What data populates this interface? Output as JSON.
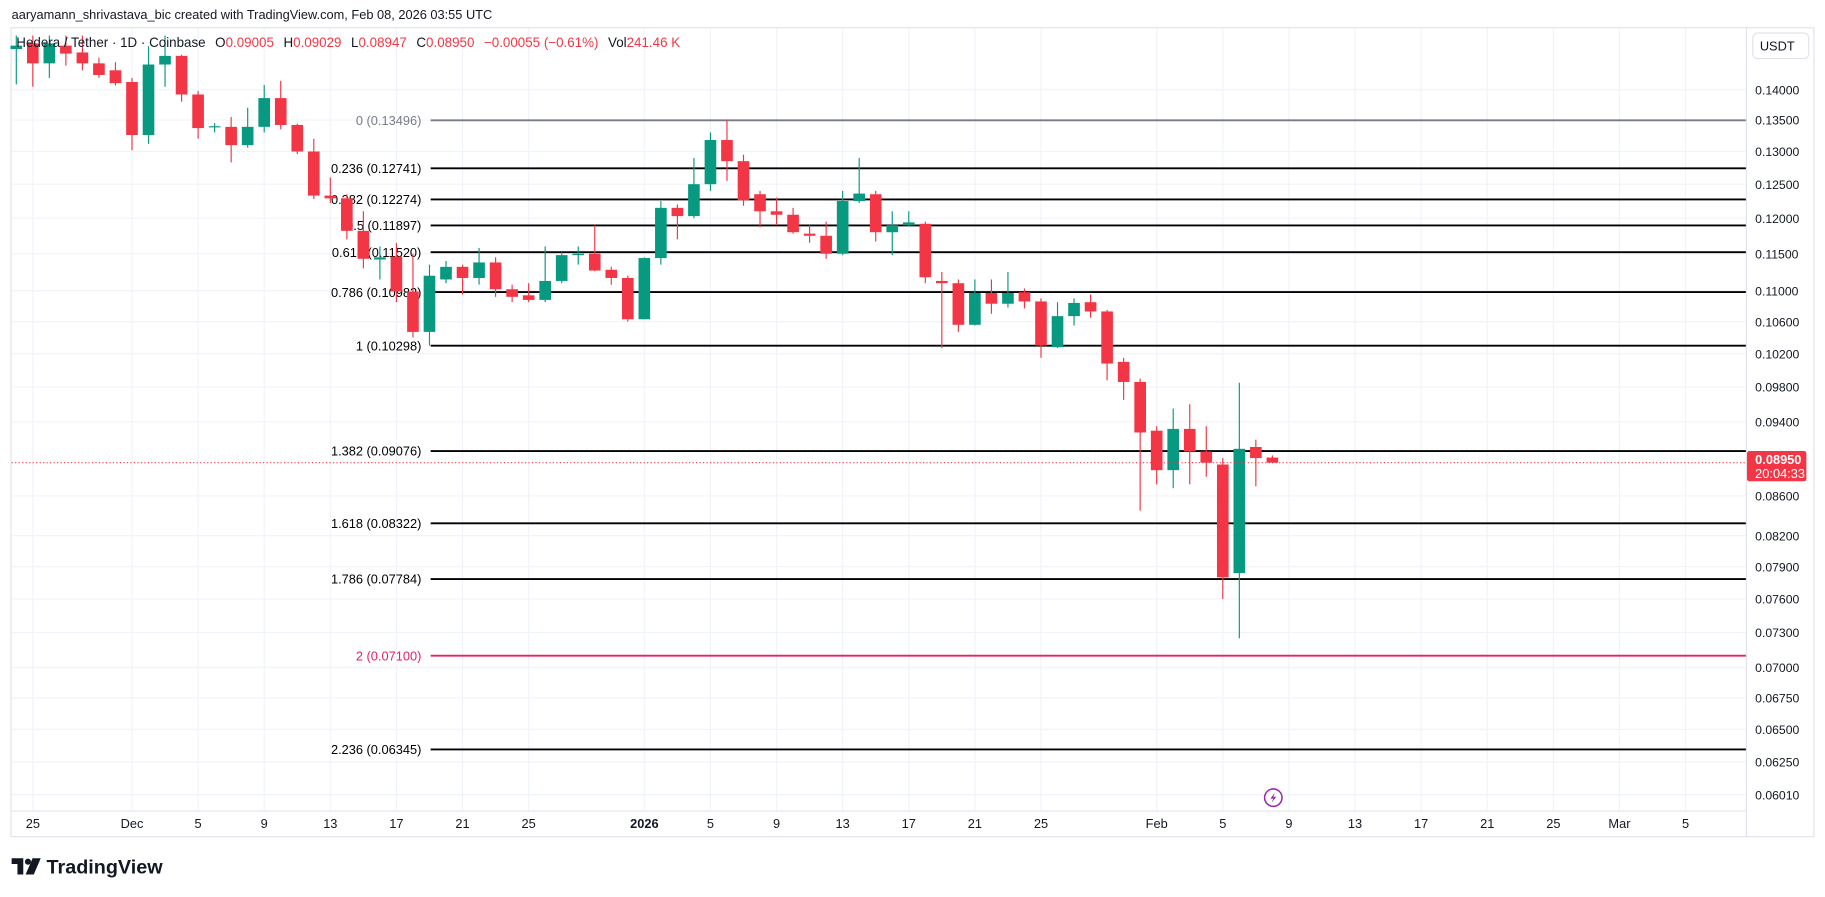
{
  "header": {
    "attribution": "aaryamann_shrivastava_bic created with TradingView.com, Feb 08, 2026 03:55 UTC"
  },
  "legend": {
    "symbol": "Hedera / Tether · 1D · Coinbase",
    "o_label": "O",
    "o": "0.09005",
    "h_label": "H",
    "h": "0.09029",
    "l_label": "L",
    "l": "0.08947",
    "c_label": "C",
    "c": "0.08950",
    "change": "−0.00055 (−0.61%)",
    "vol_label": "Vol",
    "vol": "241.46 K"
  },
  "currency_button": "USDT",
  "last_price": {
    "value": "0.08950",
    "countdown": "20:04:33"
  },
  "watermark": "TradingView",
  "colors": {
    "up": "#089981",
    "down": "#f23645",
    "fib": "#000000",
    "fib_zero": "#787b86",
    "fib_two": "#e91e63",
    "grid": "#f0f3fa"
  },
  "icons": {
    "logo": "tradingview-logo-icon",
    "event": "lightning-bolt-icon"
  },
  "chart_data": {
    "type": "candlestick",
    "scale": "log",
    "ylim": [
      0.059,
      0.15
    ],
    "grid": true,
    "y_ticks": [
      "0.14000",
      "0.13500",
      "0.13000",
      "0.12500",
      "0.12000",
      "0.11500",
      "0.11000",
      "0.10600",
      "0.10200",
      "0.09800",
      "0.09400",
      "0.08600",
      "0.08200",
      "0.07900",
      "0.07600",
      "0.07300",
      "0.07000",
      "0.06750",
      "0.06500",
      "0.06250",
      "0.06010"
    ],
    "x_ticks": [
      {
        "label": "25",
        "date": "2025-11-25"
      },
      {
        "label": "Dec",
        "date": "2025-12-01"
      },
      {
        "label": "5",
        "date": "2025-12-05"
      },
      {
        "label": "9",
        "date": "2025-12-09"
      },
      {
        "label": "13",
        "date": "2025-12-13"
      },
      {
        "label": "17",
        "date": "2025-12-17"
      },
      {
        "label": "21",
        "date": "2025-12-21"
      },
      {
        "label": "25",
        "date": "2025-12-25"
      },
      {
        "label": "2026",
        "date": "2026-01-01",
        "bold": true
      },
      {
        "label": "5",
        "date": "2026-01-05"
      },
      {
        "label": "9",
        "date": "2026-01-09"
      },
      {
        "label": "13",
        "date": "2026-01-13"
      },
      {
        "label": "17",
        "date": "2026-01-17"
      },
      {
        "label": "21",
        "date": "2026-01-21"
      },
      {
        "label": "25",
        "date": "2026-01-25"
      },
      {
        "label": "Feb",
        "date": "2026-02-01"
      },
      {
        "label": "5",
        "date": "2026-02-05"
      },
      {
        "label": "9",
        "date": "2026-02-09"
      },
      {
        "label": "13",
        "date": "2026-02-13"
      },
      {
        "label": "17",
        "date": "2026-02-17"
      },
      {
        "label": "21",
        "date": "2026-02-21"
      },
      {
        "label": "25",
        "date": "2026-02-25"
      },
      {
        "label": "Mar",
        "date": "2026-03-01"
      },
      {
        "label": "5",
        "date": "2026-03-05"
      }
    ],
    "fib_levels": [
      {
        "label": "0 (0.13496)",
        "price": 0.13496
      },
      {
        "label": "0.236 (0.12741)",
        "price": 0.12741
      },
      {
        "label": "0.382 (0.12274)",
        "price": 0.12274
      },
      {
        "label": "0.5 (0.11897)",
        "price": 0.11897
      },
      {
        "label": "0.618 (0.11520)",
        "price": 0.1152
      },
      {
        "label": "0.786 (0.10982)",
        "price": 0.10982
      },
      {
        "label": "1 (0.10298)",
        "price": 0.10298
      },
      {
        "label": "1.382 (0.09076)",
        "price": 0.09076
      },
      {
        "label": "1.618 (0.08322)",
        "price": 0.08322
      },
      {
        "label": "1.786 (0.07784)",
        "price": 0.07784
      },
      {
        "label": "2 (0.07100)",
        "price": 0.071
      },
      {
        "label": "2.236 (0.06345)",
        "price": 0.06345
      }
    ],
    "last_price": 0.0895,
    "candles": [
      [
        "2025-11-24",
        0.147,
        0.1494,
        0.1409,
        0.1476
      ],
      [
        "2025-11-25",
        0.148,
        0.1494,
        0.1405,
        0.1445
      ],
      [
        "2025-11-26",
        0.1445,
        0.1494,
        0.142,
        0.148
      ],
      [
        "2025-11-27",
        0.1476,
        0.1494,
        0.1441,
        0.1462
      ],
      [
        "2025-11-28",
        0.1464,
        0.1494,
        0.1433,
        0.1445
      ],
      [
        "2025-11-29",
        0.1445,
        0.1455,
        0.142,
        0.1425
      ],
      [
        "2025-11-30",
        0.1433,
        0.1447,
        0.1407,
        0.1411
      ],
      [
        "2025-12-01",
        0.1413,
        0.142,
        0.1302,
        0.1326
      ],
      [
        "2025-12-02",
        0.1326,
        0.1475,
        0.1312,
        0.1443
      ],
      [
        "2025-12-03",
        0.1443,
        0.1494,
        0.1405,
        0.1458
      ],
      [
        "2025-12-04",
        0.1458,
        0.146,
        0.138,
        0.1392
      ],
      [
        "2025-12-05",
        0.1392,
        0.1398,
        0.132,
        0.1337
      ],
      [
        "2025-12-06",
        0.1339,
        0.1345,
        0.133,
        0.134
      ],
      [
        "2025-12-07",
        0.1339,
        0.1355,
        0.1283,
        0.131
      ],
      [
        "2025-12-08",
        0.131,
        0.137,
        0.1306,
        0.1339
      ],
      [
        "2025-12-09",
        0.1339,
        0.1408,
        0.133,
        0.1386
      ],
      [
        "2025-12-10",
        0.1386,
        0.1415,
        0.1335,
        0.1342
      ],
      [
        "2025-12-11",
        0.1342,
        0.1344,
        0.1296,
        0.13
      ],
      [
        "2025-12-12",
        0.13,
        0.132,
        0.1228,
        0.1233
      ],
      [
        "2025-12-13",
        0.1233,
        0.126,
        0.1222,
        0.1229
      ],
      [
        "2025-12-14",
        0.1229,
        0.1235,
        0.117,
        0.1182
      ],
      [
        "2025-12-15",
        0.1182,
        0.121,
        0.113,
        0.1143
      ],
      [
        "2025-12-16",
        0.1142,
        0.116,
        0.1115,
        0.1145
      ],
      [
        "2025-12-17",
        0.1146,
        0.1165,
        0.1085,
        0.1099
      ],
      [
        "2025-12-18",
        0.1099,
        0.115,
        0.104,
        0.1047
      ],
      [
        "2025-12-19",
        0.1047,
        0.1135,
        0.103,
        0.112
      ],
      [
        "2025-12-20",
        0.1115,
        0.114,
        0.111,
        0.1132
      ],
      [
        "2025-12-21",
        0.1132,
        0.1135,
        0.1095,
        0.1117
      ],
      [
        "2025-12-22",
        0.1117,
        0.1158,
        0.1108,
        0.1138
      ],
      [
        "2025-12-23",
        0.1138,
        0.1145,
        0.1092,
        0.1102
      ],
      [
        "2025-12-24",
        0.1102,
        0.1108,
        0.1085,
        0.1092
      ],
      [
        "2025-12-25",
        0.1094,
        0.111,
        0.1085,
        0.1088
      ],
      [
        "2025-12-26",
        0.1088,
        0.116,
        0.1085,
        0.1113
      ],
      [
        "2025-12-27",
        0.1113,
        0.1152,
        0.111,
        0.1148
      ],
      [
        "2025-12-28",
        0.1148,
        0.116,
        0.1135,
        0.115
      ],
      [
        "2025-12-29",
        0.115,
        0.119,
        0.1126,
        0.1127
      ],
      [
        "2025-12-30",
        0.1128,
        0.1132,
        0.1108,
        0.1117
      ],
      [
        "2025-12-31",
        0.1117,
        0.112,
        0.106,
        0.1063
      ],
      [
        "2026-01-01",
        0.1063,
        0.1145,
        0.1063,
        0.1144
      ],
      [
        "2026-01-02",
        0.1144,
        0.1225,
        0.1135,
        0.1215
      ],
      [
        "2026-01-03",
        0.1215,
        0.122,
        0.117,
        0.1203
      ],
      [
        "2026-01-04",
        0.1203,
        0.129,
        0.12,
        0.125
      ],
      [
        "2026-01-05",
        0.125,
        0.133,
        0.124,
        0.1318
      ],
      [
        "2026-01-06",
        0.1318,
        0.135,
        0.1255,
        0.1285
      ],
      [
        "2026-01-07",
        0.1285,
        0.1295,
        0.1218,
        0.1226
      ],
      [
        "2026-01-08",
        0.1235,
        0.124,
        0.1187,
        0.121
      ],
      [
        "2026-01-09",
        0.121,
        0.123,
        0.119,
        0.1205
      ],
      [
        "2026-01-10",
        0.1205,
        0.1215,
        0.1178,
        0.118
      ],
      [
        "2026-01-11",
        0.1178,
        0.119,
        0.1165,
        0.1175
      ],
      [
        "2026-01-12",
        0.1175,
        0.1195,
        0.1143,
        0.115
      ],
      [
        "2026-01-13",
        0.115,
        0.124,
        0.1148,
        0.1225
      ],
      [
        "2026-01-14",
        0.1225,
        0.129,
        0.1222,
        0.1236
      ],
      [
        "2026-01-15",
        0.1235,
        0.124,
        0.1167,
        0.118
      ],
      [
        "2026-01-16",
        0.118,
        0.121,
        0.1148,
        0.119
      ],
      [
        "2026-01-17",
        0.119,
        0.121,
        0.1188,
        0.1194
      ],
      [
        "2026-01-18",
        0.1192,
        0.1195,
        0.111,
        0.1118
      ],
      [
        "2026-01-19",
        0.1113,
        0.1125,
        0.1027,
        0.111
      ],
      [
        "2026-01-20",
        0.111,
        0.1115,
        0.1047,
        0.1056
      ],
      [
        "2026-01-21",
        0.1056,
        0.1115,
        0.1055,
        0.1097
      ],
      [
        "2026-01-22",
        0.1097,
        0.1115,
        0.107,
        0.1083
      ],
      [
        "2026-01-23",
        0.1083,
        0.1125,
        0.1078,
        0.1097
      ],
      [
        "2026-01-24",
        0.1098,
        0.1103,
        0.1077,
        0.1086
      ],
      [
        "2026-01-25",
        0.1086,
        0.109,
        0.1015,
        0.103
      ],
      [
        "2026-01-26",
        0.1028,
        0.1085,
        0.1027,
        0.1067
      ],
      [
        "2026-01-27",
        0.1067,
        0.109,
        0.1055,
        0.1084
      ],
      [
        "2026-01-28",
        0.1085,
        0.1095,
        0.1065,
        0.1073
      ],
      [
        "2026-01-29",
        0.1073,
        0.1075,
        0.0988,
        0.1008
      ],
      [
        "2026-01-30",
        0.101,
        0.1015,
        0.0965,
        0.0986
      ],
      [
        "2026-01-31",
        0.0986,
        0.099,
        0.0845,
        0.0928
      ],
      [
        "2026-02-01",
        0.093,
        0.0935,
        0.0872,
        0.0887
      ],
      [
        "2026-02-02",
        0.0887,
        0.0955,
        0.0868,
        0.0932
      ],
      [
        "2026-02-03",
        0.0932,
        0.096,
        0.0872,
        0.0907
      ],
      [
        "2026-02-04",
        0.0907,
        0.0935,
        0.088,
        0.0895
      ],
      [
        "2026-02-05",
        0.0893,
        0.09,
        0.076,
        0.078
      ],
      [
        "2026-02-06",
        0.0784,
        0.0985,
        0.0725,
        0.091
      ],
      [
        "2026-02-07",
        0.0912,
        0.092,
        0.087,
        0.09
      ],
      [
        "2026-02-08",
        0.09005,
        0.09029,
        0.08947,
        0.0895
      ]
    ]
  }
}
